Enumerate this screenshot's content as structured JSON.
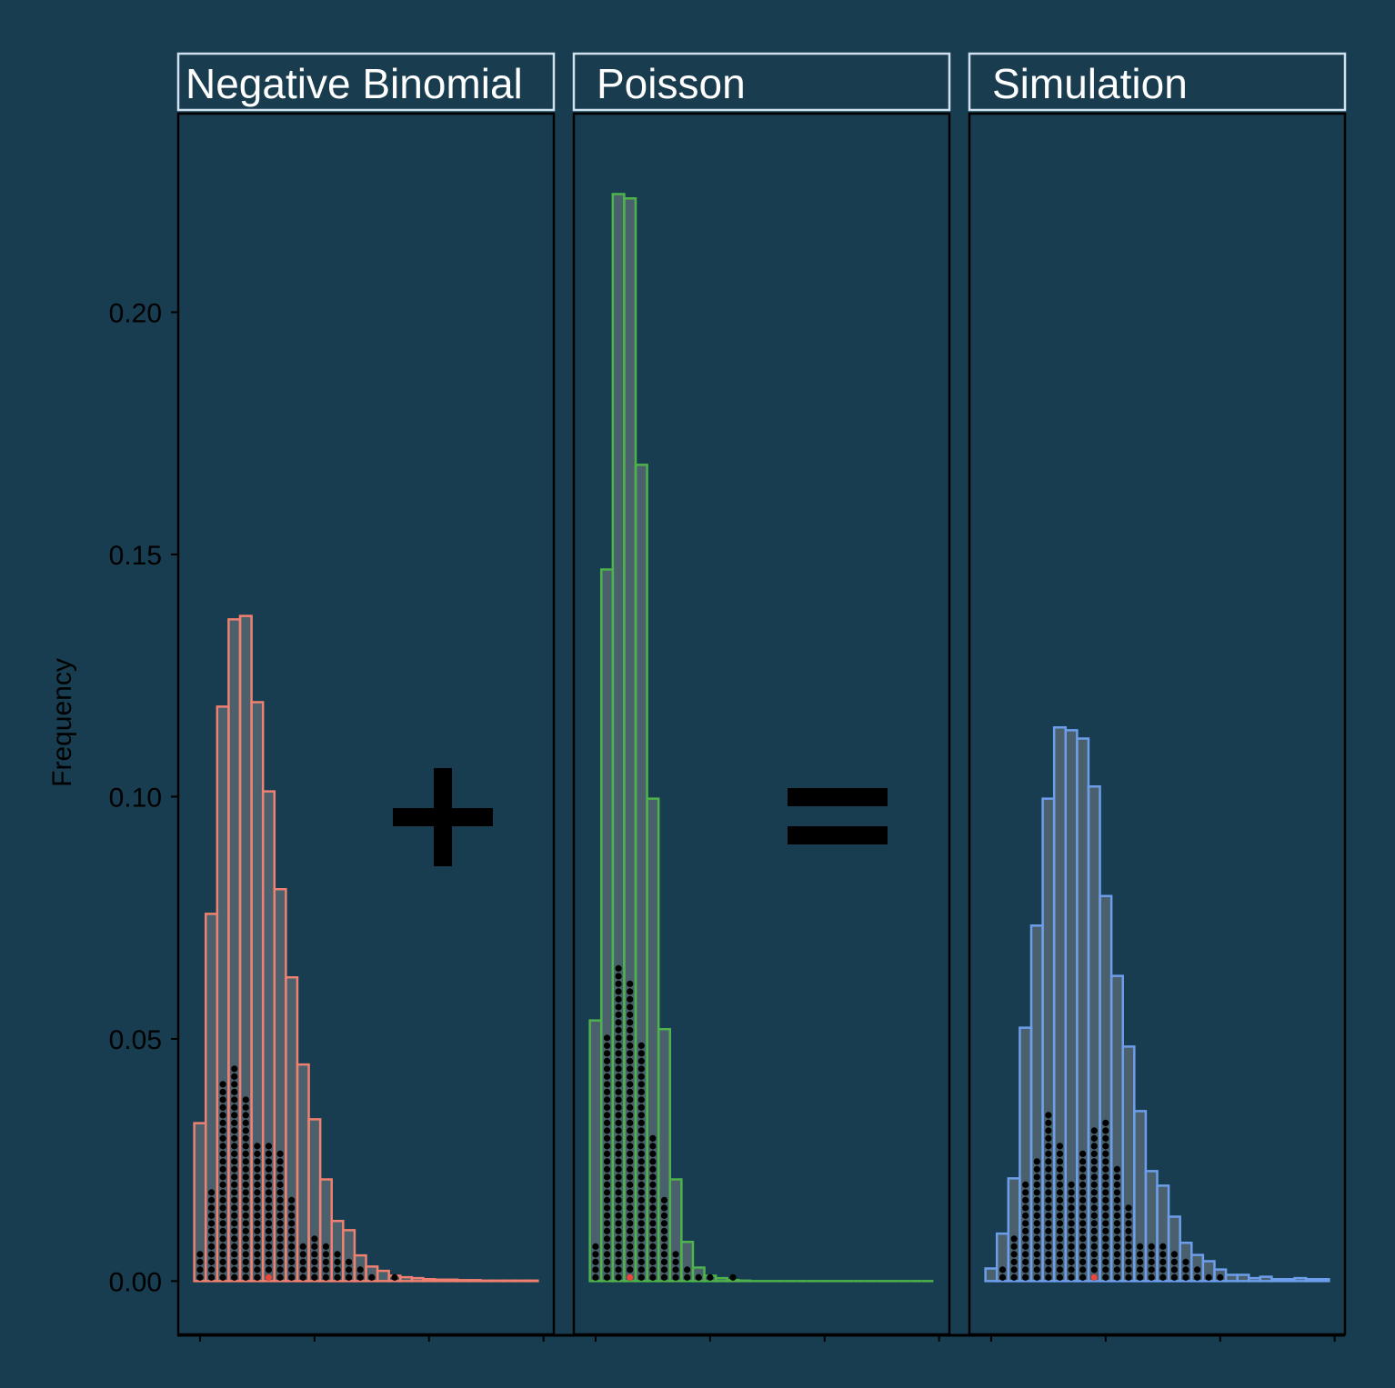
{
  "chart_data": {
    "type": "histogram",
    "y_label": "Frequency",
    "ylim": [
      -0.011,
      0.241
    ],
    "yticks": [
      {
        "value": 0,
        "label": "0.00"
      },
      0.05,
      {
        "value": 0.1,
        "label": "0.10"
      },
      0.15,
      {
        "value": 0.2,
        "label": "0.20"
      }
    ],
    "xlim": [
      -1.9,
      30.9
    ],
    "xticks": [
      0,
      10,
      20,
      30
    ],
    "bins": [
      -0.5,
      0.5,
      1.5,
      2.5,
      3.5,
      4.5,
      5.5,
      6.5,
      7.5,
      8.5,
      9.5,
      10.5,
      11.5,
      12.5,
      13.5,
      14.5,
      15.5,
      16.5,
      17.5,
      18.5,
      19.5,
      20.5,
      21.5,
      22.5,
      23.5,
      24.5,
      25.5,
      26.5,
      27.5,
      28.5,
      29.5
    ],
    "marker_color": "#e8473a",
    "facets": [
      {
        "title": "Negative Binomial",
        "color": "#f0806f",
        "values": [
          0.0326,
          0.0758,
          0.1186,
          0.1366,
          0.1373,
          0.1195,
          0.1011,
          0.0809,
          0.0627,
          0.0447,
          0.0334,
          0.021,
          0.0124,
          0.0105,
          0.0053,
          0.003,
          0.0021,
          0.0011,
          0.0008,
          0.0006,
          0.0004,
          0.0003,
          0.0003,
          0.0002,
          0.0002,
          0.0001,
          0.0001,
          0.0001,
          0.0001,
          0.0001
        ],
        "dots": [
          4,
          12,
          26,
          28,
          24,
          18,
          18,
          17,
          11,
          5,
          6,
          5,
          4,
          3,
          2,
          1,
          0,
          1,
          0,
          0,
          0,
          0,
          0,
          0,
          0,
          0,
          0,
          0,
          0,
          0
        ],
        "marker": 6
      },
      {
        "title": "Poisson",
        "color": "#4db34a",
        "values": [
          0.0538,
          0.1469,
          0.2244,
          0.2235,
          0.1685,
          0.0996,
          0.052,
          0.021,
          0.0081,
          0.0028,
          0.0011,
          0.0006,
          0.0002,
          0.0001,
          0,
          0,
          0,
          0,
          0,
          0,
          0,
          0,
          0,
          0,
          0,
          0,
          0,
          0,
          0,
          0
        ],
        "dots": [
          5,
          32,
          41,
          39,
          31,
          19,
          11,
          4,
          2,
          1,
          1,
          0,
          1,
          0,
          0,
          0,
          0,
          0,
          0,
          0,
          0,
          0,
          0,
          0,
          0,
          0,
          0,
          0,
          0,
          0
        ],
        "marker": 3
      },
      {
        "title": "Simulation",
        "color": "#6d9eeb",
        "values": [
          0.0026,
          0.0098,
          0.0212,
          0.0523,
          0.0734,
          0.0996,
          0.1143,
          0.1137,
          0.112,
          0.1021,
          0.0795,
          0.063,
          0.0484,
          0.0351,
          0.0227,
          0.0197,
          0.0133,
          0.0079,
          0.0054,
          0.0041,
          0.0024,
          0.0013,
          0.0013,
          0.0006,
          0.0009,
          0.0004,
          0.0004,
          0.0006,
          0.0004,
          0.0004
        ],
        "dots": [
          0,
          2,
          6,
          13,
          16,
          22,
          18,
          13,
          17,
          20,
          21,
          15,
          10,
          5,
          5,
          5,
          4,
          3,
          2,
          1,
          1,
          0,
          0,
          0,
          0,
          0,
          0,
          0,
          0,
          0
        ],
        "marker": 9
      }
    ]
  }
}
